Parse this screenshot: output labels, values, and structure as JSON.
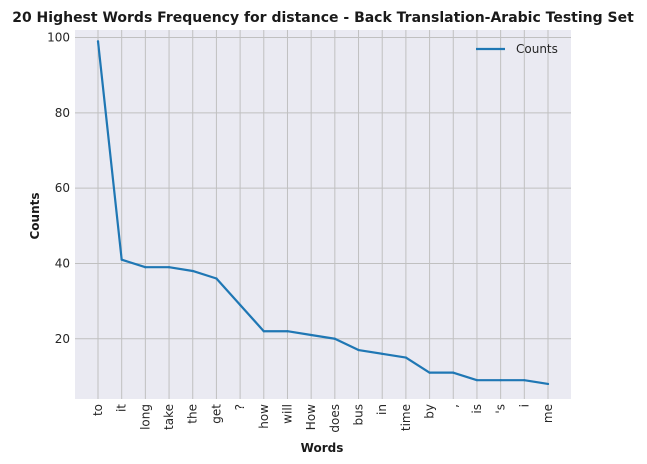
{
  "chart_data": {
    "type": "line",
    "title": "20 Highest Words Frequency for distance - Back Translation-Arabic Testing Set",
    "xlabel": "Words",
    "ylabel": "Counts",
    "categories": [
      "to",
      "it",
      "long",
      "take",
      "the",
      "get",
      "?",
      "how",
      "will",
      "How",
      "does",
      "bus",
      "in",
      "time",
      "by",
      ",",
      "is",
      "'s",
      "i",
      "me"
    ],
    "series": [
      {
        "name": "Counts",
        "values": [
          99,
          41,
          39,
          39,
          38,
          36,
          29,
          22,
          22,
          21,
          20,
          17,
          16,
          15,
          11,
          11,
          9,
          9,
          9,
          8
        ]
      }
    ],
    "ylim": [
      4,
      102
    ],
    "yticks": [
      20,
      40,
      60,
      80,
      100
    ],
    "grid": true,
    "legend": "top-right",
    "colors": {
      "line": "#1f77b4",
      "plot_bg": "#eaeaf2",
      "grid": "#c0c0c0"
    }
  }
}
